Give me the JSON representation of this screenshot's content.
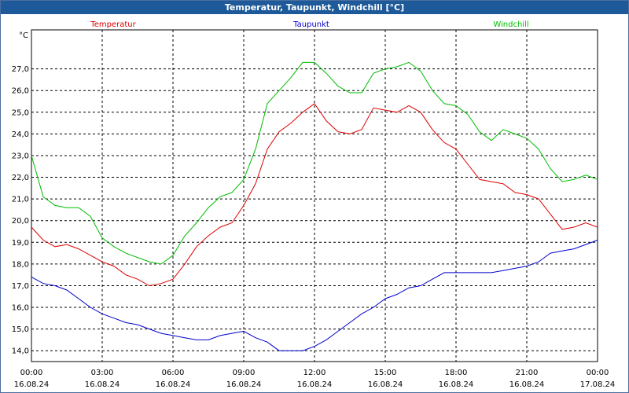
{
  "window": {
    "title": "Temperatur, Taupunkt, Windchill [°C]"
  },
  "chart_data": {
    "type": "line",
    "title": "Temperatur, Taupunkt, Windchill [°C]",
    "ylabel": "°C",
    "ylim": [
      13.5,
      28.8
    ],
    "xlim": [
      0,
      24
    ],
    "yticks": [
      "14,0",
      "15,0",
      "16,0",
      "17,0",
      "18,0",
      "19,0",
      "20,0",
      "21,0",
      "22,0",
      "23,0",
      "24,0",
      "25,0",
      "26,0",
      "27,0"
    ],
    "xticks": [
      {
        "time": "00:00",
        "date": "16.08.24"
      },
      {
        "time": "03:00",
        "date": "16.08.24"
      },
      {
        "time": "06:00",
        "date": "16.08.24"
      },
      {
        "time": "09:00",
        "date": "16.08.24"
      },
      {
        "time": "12:00",
        "date": "16.08.24"
      },
      {
        "time": "15:00",
        "date": "16.08.24"
      },
      {
        "time": "18:00",
        "date": "16.08.24"
      },
      {
        "time": "21:00",
        "date": "16.08.24"
      },
      {
        "time": "00:00",
        "date": "17.08.24"
      }
    ],
    "grid": true,
    "legend": "top",
    "x": [
      0,
      0.5,
      1,
      1.5,
      2,
      2.5,
      3,
      3.5,
      4,
      4.5,
      5,
      5.5,
      6,
      6.5,
      7,
      7.5,
      8,
      8.5,
      9,
      9.5,
      10,
      10.5,
      11,
      11.5,
      12,
      12.5,
      13,
      13.5,
      14,
      14.5,
      15,
      15.5,
      16,
      16.5,
      17,
      17.5,
      18,
      18.5,
      19,
      19.5,
      20,
      20.5,
      21,
      21.5,
      22,
      22.5,
      23,
      23.5,
      24
    ],
    "series": [
      {
        "name": "Temperatur",
        "color": "#dd0000",
        "values": [
          19.7,
          19.1,
          18.8,
          18.9,
          18.7,
          18.4,
          18.1,
          17.9,
          17.5,
          17.3,
          17.0,
          17.1,
          17.3,
          18.0,
          18.8,
          19.3,
          19.7,
          19.9,
          20.7,
          21.7,
          23.3,
          24.1,
          24.5,
          25.0,
          25.4,
          24.6,
          24.1,
          24.0,
          24.2,
          25.2,
          25.1,
          25.0,
          25.3,
          25.0,
          24.2,
          23.6,
          23.3,
          22.6,
          21.9,
          21.8,
          21.7,
          21.3,
          21.2,
          21.0,
          20.3,
          19.6,
          19.7,
          19.9,
          19.7
        ]
      },
      {
        "name": "Taupunkt",
        "color": "#0000cc",
        "values": [
          17.4,
          17.1,
          17.0,
          16.8,
          16.4,
          16.0,
          15.7,
          15.5,
          15.3,
          15.2,
          15.0,
          14.8,
          14.7,
          14.6,
          14.5,
          14.5,
          14.7,
          14.8,
          14.9,
          14.6,
          14.4,
          14.0,
          14.0,
          14.0,
          14.2,
          14.5,
          14.9,
          15.3,
          15.7,
          16.0,
          16.4,
          16.6,
          16.9,
          17.0,
          17.3,
          17.6,
          17.6,
          17.6,
          17.6,
          17.6,
          17.7,
          17.8,
          17.9,
          18.1,
          18.5,
          18.6,
          18.7,
          18.9,
          19.1
        ]
      },
      {
        "name": "Windchill",
        "color": "#00bb00",
        "values": [
          23.0,
          21.1,
          20.7,
          20.6,
          20.6,
          20.2,
          19.2,
          18.8,
          18.5,
          18.3,
          18.1,
          18.0,
          18.4,
          19.3,
          19.9,
          20.6,
          21.1,
          21.3,
          21.9,
          23.3,
          25.4,
          26.0,
          26.6,
          27.3,
          27.3,
          26.8,
          26.2,
          25.9,
          25.9,
          26.8,
          27.0,
          27.1,
          27.3,
          26.9,
          26.0,
          25.4,
          25.3,
          24.9,
          24.1,
          23.7,
          24.2,
          24.0,
          23.8,
          23.3,
          22.4,
          21.8,
          21.9,
          22.1,
          21.9
        ]
      }
    ]
  }
}
